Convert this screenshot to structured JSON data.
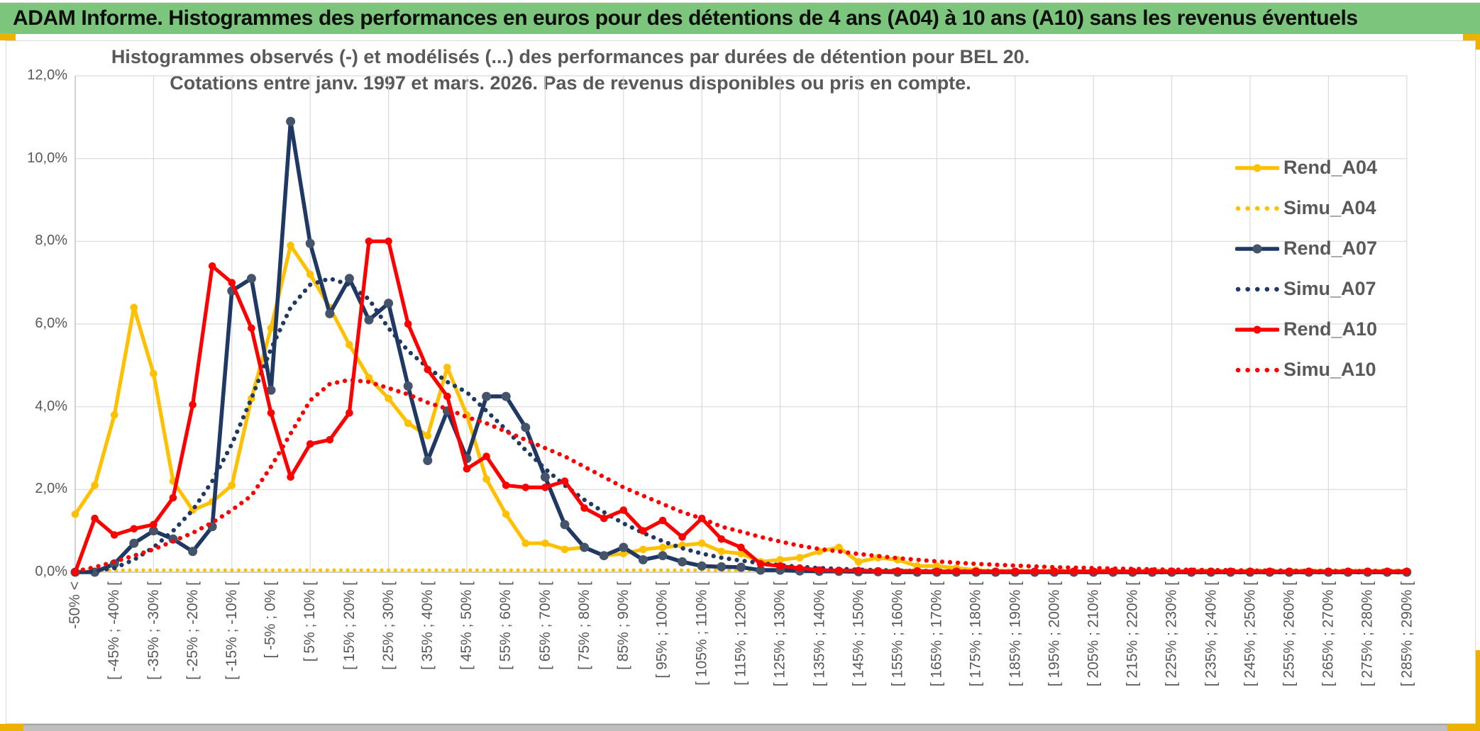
{
  "page": {
    "title_bar": "ADAM Informe. Histogrammes des performances en euros pour des détentions de 4 ans (A04) à 10 ans (A10) sans les revenus éventuels",
    "colors": {
      "header_green": "#7CC57C",
      "accent_gold": "#EDB100",
      "gridline": "#D9D9D9",
      "axis_line": "#BFBFBF",
      "text_gray": "#595959",
      "series_gold": "#FFC000",
      "series_navy": "#1F3864",
      "navy_marker": "#44546A",
      "series_red": "#FF0000"
    }
  },
  "chart": {
    "title_line1": "Histogrammes observés (-) et modélisés (...) des performances par durées de détention pour BEL 20.",
    "title_line2": "Cotations entre janv. 1997 et mars. 2026. Pas de revenus disponibles ou pris en compte.",
    "y_tick_labels": [
      "12,0%",
      "10,0%",
      "8,0%",
      "6,0%",
      "4,0%",
      "2,0%",
      "0,0%"
    ]
  },
  "chart_data": {
    "type": "line",
    "title": "Histogrammes observés (-) et modélisés (...) des performances par durées de détention pour BEL 20. Cotations entre janv. 1997 et mars. 2026. Pas de revenus disponibles ou pris en compte.",
    "ylabel": "",
    "xlabel": "",
    "ylim": [
      0,
      12
    ],
    "y_unit": "percent",
    "grid": true,
    "legend_position": "right",
    "bins_total": 69,
    "x_label_interval": 2,
    "x_tick_labels": [
      "-50% <",
      "[ -45% ; -40% [",
      "[ -35% ; -30% [",
      "[ -25% ; -20% [",
      "[ -15% ; -10% [",
      "[ -5% ; 0% [",
      "[ 5% ; 10% [",
      "[ 15% ; 20% [",
      "[ 25% ; 30% [",
      "[ 35% ; 40% [",
      "[ 45% ; 50% [",
      "[ 55% ; 60% [",
      "[ 65% ; 70% [",
      "[ 75% ; 80% [",
      "[ 85% ; 90% [",
      "[ 95% ; 100% [",
      "[ 105% ; 110% [",
      "[ 115% ; 120% [",
      "[ 125% ; 130% [",
      "[ 135% ; 140% [",
      "[ 145% ; 150% [",
      "[ 155% ; 160% [",
      "[ 165% ; 170% [",
      "[ 175% ; 180% [",
      "[ 185% ; 190% [",
      "[ 195% ; 200% [",
      "[ 205% ; 210% [",
      "[ 215% ; 220% [",
      "[ 225% ; 230% [",
      "[ 235% ; 240% [",
      "[ 245% ; 250% [",
      "[ 255% ; 260% [",
      "[ 265% ; 270% [",
      "[ 275% ; 280% [",
      "[ 285% ; 290% ["
    ],
    "series": [
      {
        "name": "Rend_A04",
        "style": "solid",
        "color": "#FFC000",
        "marker_color": "#FFC000",
        "values": [
          1.4,
          2.1,
          3.8,
          6.4,
          4.8,
          2.2,
          1.5,
          1.7,
          2.1,
          4.2,
          5.9,
          7.9,
          7.2,
          6.4,
          5.5,
          4.7,
          4.2,
          3.6,
          3.3,
          4.95,
          3.8,
          2.25,
          1.4,
          0.7,
          0.7,
          0.55,
          0.6,
          0.4,
          0.45,
          0.55,
          0.6,
          0.65,
          0.7,
          0.5,
          0.45,
          0.25,
          0.3,
          0.35,
          0.5,
          0.6,
          0.25,
          0.35,
          0.3,
          0.15,
          0.15,
          0.1,
          0.05,
          0.02,
          0.02,
          0,
          0,
          0,
          0,
          0,
          0,
          0,
          0,
          0,
          0,
          0,
          0,
          0,
          0,
          0,
          0,
          0,
          0,
          0,
          0
        ]
      },
      {
        "name": "Simu_A04",
        "style": "dotted",
        "color": "#FFC000",
        "values": [
          0.05,
          0.05,
          0.05,
          0.05,
          0.05,
          0.05,
          0.05,
          0.05,
          0.05,
          0.05,
          0.05,
          0.05,
          0.05,
          0.05,
          0.05,
          0.05,
          0.05,
          0.05,
          0.05,
          0.05,
          0.05,
          0.05,
          0.05,
          0.05,
          0.05,
          0.05,
          0.05,
          0.05,
          0.05,
          0.05,
          0.05,
          0.05,
          0.05,
          0.05,
          0.05,
          0.05,
          0.05,
          0.05,
          0.05,
          0.05,
          0.05,
          0.05,
          0.05,
          0.05,
          0.05,
          0.05,
          0.05,
          0.05,
          0.05,
          0.05,
          0.05,
          0.05,
          0.05,
          0.05,
          0.05,
          0.05,
          0.05,
          0.05,
          0.05,
          0.05,
          0.05,
          0.05,
          0.05,
          0.05,
          0.05,
          0.05,
          0.05,
          0.05,
          0.05
        ]
      },
      {
        "name": "Rend_A07",
        "style": "solid",
        "color": "#1F3864",
        "marker_color": "#44546A",
        "values": [
          0,
          0,
          0.2,
          0.7,
          1.0,
          0.8,
          0.5,
          1.1,
          6.8,
          7.1,
          4.4,
          10.9,
          7.95,
          6.25,
          7.1,
          6.1,
          6.5,
          4.5,
          2.7,
          3.9,
          2.75,
          4.25,
          4.25,
          3.5,
          2.3,
          1.15,
          0.6,
          0.4,
          0.6,
          0.3,
          0.4,
          0.25,
          0.15,
          0.13,
          0.12,
          0.05,
          0.05,
          0.03,
          0.02,
          0.02,
          0.01,
          0.01,
          0,
          0,
          0,
          0,
          0,
          0,
          0,
          0,
          0,
          0,
          0,
          0,
          0,
          0,
          0,
          0,
          0,
          0,
          0,
          0,
          0,
          0,
          0,
          0,
          0,
          0,
          0
        ]
      },
      {
        "name": "Simu_A07",
        "style": "dotted",
        "color": "#1F3864",
        "values": [
          0,
          0.03,
          0.1,
          0.3,
          0.6,
          1.0,
          1.5,
          2.2,
          3.1,
          4.2,
          5.4,
          6.4,
          6.95,
          7.1,
          6.95,
          6.6,
          5.9,
          5.35,
          4.95,
          4.6,
          4.35,
          3.9,
          3.45,
          2.95,
          2.5,
          2.1,
          1.75,
          1.45,
          1.18,
          0.95,
          0.75,
          0.58,
          0.45,
          0.35,
          0.28,
          0.22,
          0.17,
          0.13,
          0.1,
          0.08,
          0.06,
          0.05,
          0.04,
          0.03,
          0.03,
          0.02,
          0.02,
          0.02,
          0.01,
          0.01,
          0.01,
          0.01,
          0.01,
          0.01,
          0,
          0,
          0,
          0,
          0,
          0,
          0,
          0,
          0,
          0,
          0,
          0,
          0,
          0,
          0
        ]
      },
      {
        "name": "Rend_A10",
        "style": "solid",
        "color": "#FF0000",
        "marker_color": "#FF0000",
        "values": [
          0,
          1.3,
          0.9,
          1.05,
          1.15,
          1.8,
          4.05,
          7.4,
          7.0,
          5.9,
          3.85,
          2.3,
          3.1,
          3.2,
          3.85,
          8.0,
          8.0,
          6.0,
          4.9,
          4.25,
          2.5,
          2.8,
          2.1,
          2.05,
          2.05,
          2.2,
          1.55,
          1.3,
          1.5,
          1.0,
          1.25,
          0.85,
          1.3,
          0.8,
          0.6,
          0.2,
          0.15,
          0.1,
          0.05,
          0.04,
          0.04,
          0.03,
          0.03,
          0.03,
          0.02,
          0.02,
          0.02,
          0.02,
          0.02,
          0.02,
          0.02,
          0.02,
          0.02,
          0.02,
          0.02,
          0.02,
          0.02,
          0.02,
          0.02,
          0.02,
          0.02,
          0.02,
          0.02,
          0.02,
          0.02,
          0.02,
          0.02,
          0.02,
          0.02
        ]
      },
      {
        "name": "Simu_A10",
        "style": "dotted",
        "color": "#FF0000",
        "values": [
          0.02,
          0.12,
          0.25,
          0.4,
          0.55,
          0.75,
          0.95,
          1.2,
          1.5,
          1.85,
          2.55,
          3.35,
          4.15,
          4.55,
          4.65,
          4.6,
          4.45,
          4.3,
          4.1,
          3.95,
          3.75,
          3.6,
          3.4,
          3.2,
          3.0,
          2.8,
          2.55,
          2.3,
          2.05,
          1.85,
          1.65,
          1.45,
          1.3,
          1.1,
          0.98,
          0.85,
          0.74,
          0.64,
          0.56,
          0.5,
          0.44,
          0.39,
          0.34,
          0.3,
          0.26,
          0.23,
          0.2,
          0.18,
          0.16,
          0.14,
          0.12,
          0.11,
          0.1,
          0.09,
          0.08,
          0.07,
          0.06,
          0.06,
          0.05,
          0.05,
          0.04,
          0.04,
          0.04,
          0.03,
          0.03,
          0.03,
          0.03,
          0.03,
          0.03
        ]
      }
    ]
  }
}
